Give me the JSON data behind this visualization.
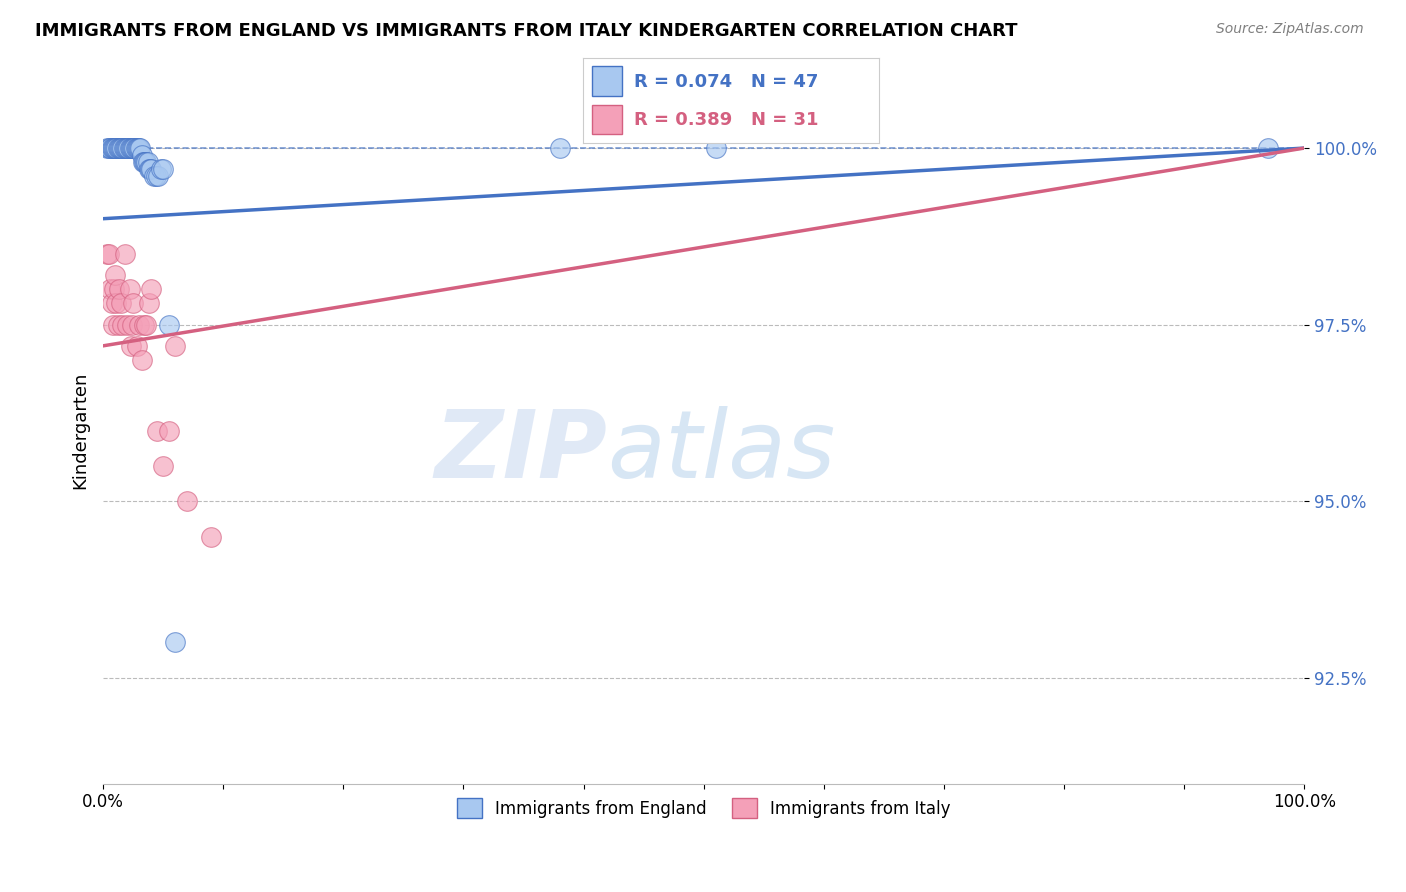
{
  "title": "IMMIGRANTS FROM ENGLAND VS IMMIGRANTS FROM ITALY KINDERGARTEN CORRELATION CHART",
  "source": "Source: ZipAtlas.com",
  "ylabel": "Kindergarten",
  "yticks": [
    0.925,
    0.95,
    0.975,
    1.0
  ],
  "ytick_labels": [
    "92.5%",
    "95.0%",
    "97.5%",
    "100.0%"
  ],
  "xlim": [
    0.0,
    1.0
  ],
  "ylim": [
    0.91,
    1.01
  ],
  "legend_england": "Immigrants from England",
  "legend_italy": "Immigrants from Italy",
  "england_R": "0.074",
  "england_N": "47",
  "italy_R": "0.389",
  "italy_N": "31",
  "england_color": "#A8C8F0",
  "italy_color": "#F4A0B8",
  "england_line_color": "#4472C4",
  "italy_line_color": "#D46080",
  "england_trend_x0": 0.0,
  "england_trend_y0": 0.99,
  "england_trend_x1": 1.0,
  "england_trend_y1": 1.0,
  "italy_trend_x0": 0.0,
  "italy_trend_y0": 0.972,
  "italy_trend_x1": 1.0,
  "italy_trend_y1": 1.0,
  "england_scatter_x": [
    0.003,
    0.005,
    0.006,
    0.007,
    0.008,
    0.009,
    0.01,
    0.011,
    0.012,
    0.013,
    0.014,
    0.015,
    0.016,
    0.017,
    0.018,
    0.019,
    0.02,
    0.021,
    0.022,
    0.023,
    0.024,
    0.025,
    0.026,
    0.027,
    0.028,
    0.029,
    0.03,
    0.031,
    0.032,
    0.033,
    0.034,
    0.035,
    0.036,
    0.037,
    0.038,
    0.039,
    0.04,
    0.042,
    0.044,
    0.046,
    0.048,
    0.05,
    0.055,
    0.06,
    0.38,
    0.51,
    0.97
  ],
  "england_scatter_y": [
    1.0,
    1.0,
    1.0,
    1.0,
    1.0,
    1.0,
    1.0,
    1.0,
    1.0,
    1.0,
    1.0,
    1.0,
    1.0,
    1.0,
    1.0,
    1.0,
    1.0,
    1.0,
    1.0,
    1.0,
    1.0,
    1.0,
    1.0,
    1.0,
    1.0,
    1.0,
    1.0,
    1.0,
    0.999,
    0.998,
    0.998,
    0.998,
    0.998,
    0.998,
    0.997,
    0.997,
    0.997,
    0.996,
    0.996,
    0.996,
    0.997,
    0.997,
    0.975,
    0.93,
    1.0,
    1.0,
    1.0
  ],
  "italy_scatter_x": [
    0.003,
    0.005,
    0.006,
    0.007,
    0.008,
    0.009,
    0.01,
    0.011,
    0.012,
    0.013,
    0.015,
    0.016,
    0.018,
    0.02,
    0.022,
    0.023,
    0.024,
    0.025,
    0.028,
    0.03,
    0.032,
    0.034,
    0.036,
    0.038,
    0.04,
    0.045,
    0.05,
    0.055,
    0.06,
    0.07,
    0.09
  ],
  "italy_scatter_y": [
    0.985,
    0.985,
    0.98,
    0.978,
    0.975,
    0.98,
    0.982,
    0.978,
    0.975,
    0.98,
    0.978,
    0.975,
    0.985,
    0.975,
    0.98,
    0.972,
    0.975,
    0.978,
    0.972,
    0.975,
    0.97,
    0.975,
    0.975,
    0.978,
    0.98,
    0.96,
    0.955,
    0.96,
    0.972,
    0.95,
    0.945
  ],
  "watermark_zip": "ZIP",
  "watermark_atlas": "atlas",
  "background_color": "#FFFFFF",
  "grid_color": "#BBBBBB"
}
